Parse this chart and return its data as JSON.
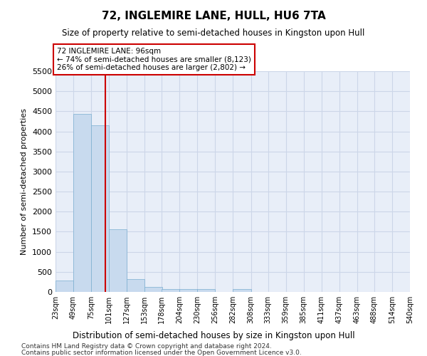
{
  "title": "72, INGLEMIRE LANE, HULL, HU6 7TA",
  "subtitle": "Size of property relative to semi-detached houses in Kingston upon Hull",
  "xlabel": "Distribution of semi-detached houses by size in Kingston upon Hull",
  "ylabel": "Number of semi-detached properties",
  "footnote1": "Contains HM Land Registry data © Crown copyright and database right 2024.",
  "footnote2": "Contains public sector information licensed under the Open Government Licence v3.0.",
  "property_label": "72 INGLEMIRE LANE: 96sqm",
  "pct_smaller": 74,
  "pct_larger": 26,
  "n_smaller": 8123,
  "n_larger": 2802,
  "bin_edges": [
    23,
    49,
    75,
    101,
    127,
    153,
    178,
    204,
    230,
    256,
    282,
    308,
    333,
    359,
    385,
    411,
    437,
    463,
    488,
    514,
    540
  ],
  "bin_labels": [
    "23sqm",
    "49sqm",
    "75sqm",
    "101sqm",
    "127sqm",
    "153sqm",
    "178sqm",
    "204sqm",
    "230sqm",
    "256sqm",
    "282sqm",
    "308sqm",
    "333sqm",
    "359sqm",
    "385sqm",
    "411sqm",
    "437sqm",
    "463sqm",
    "488sqm",
    "514sqm",
    "540sqm"
  ],
  "bar_heights": [
    280,
    4430,
    4160,
    1560,
    320,
    125,
    75,
    65,
    65,
    0,
    65,
    0,
    0,
    0,
    0,
    0,
    0,
    0,
    0,
    0
  ],
  "bar_color": "#c8daee",
  "bar_edge_color": "#7aaed0",
  "grid_color": "#ccd6e8",
  "background_color": "#e8eef8",
  "vline_color": "#cc0000",
  "vline_x": 96,
  "ylim": [
    0,
    5500
  ],
  "yticks": [
    0,
    500,
    1000,
    1500,
    2000,
    2500,
    3000,
    3500,
    4000,
    4500,
    5000,
    5500
  ]
}
